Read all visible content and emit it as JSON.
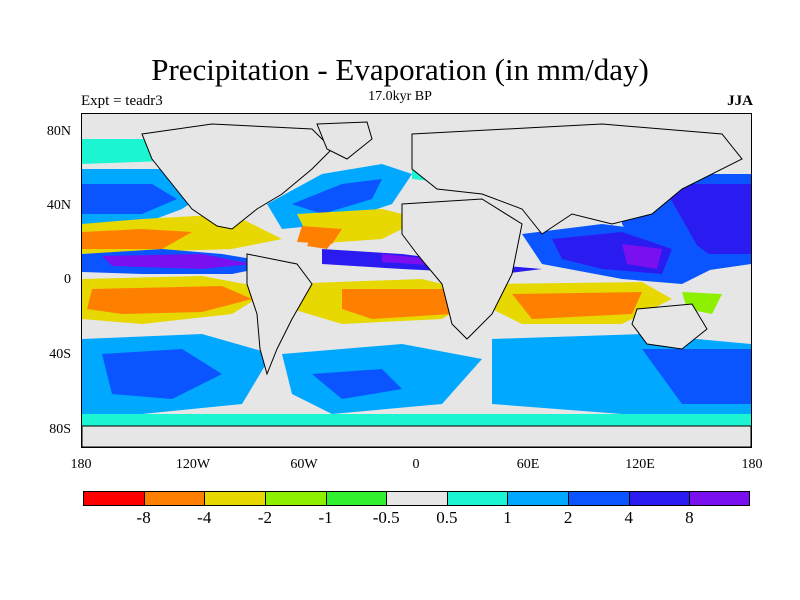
{
  "title": "Precipitation - Evaporation (in mm/day)",
  "subtitle": "17.0kyr BP",
  "experiment": "Expt = teadr3",
  "season": "JJA",
  "lat_labels": [
    "80N",
    "40N",
    "0",
    "40S",
    "80S"
  ],
  "lon_labels": [
    "180",
    "120W",
    "60W",
    "0",
    "60E",
    "120E",
    "180"
  ],
  "colorbar": {
    "colors": [
      "#ff0000",
      "#ff7f00",
      "#e6d800",
      "#8cf000",
      "#30f030",
      "#e6e6e6",
      "#1cf5d2",
      "#00a8ff",
      "#0a55ff",
      "#2a1cf0",
      "#7a10f0"
    ],
    "labels": [
      "-8",
      "-4",
      "-2",
      "-1",
      "-0.5",
      "0.5",
      "1",
      "2",
      "4",
      "8"
    ]
  },
  "palette": {
    "ocean_zero": "#e6e6e6",
    "land": "#e6e6e6",
    "coastline": "#000000"
  }
}
